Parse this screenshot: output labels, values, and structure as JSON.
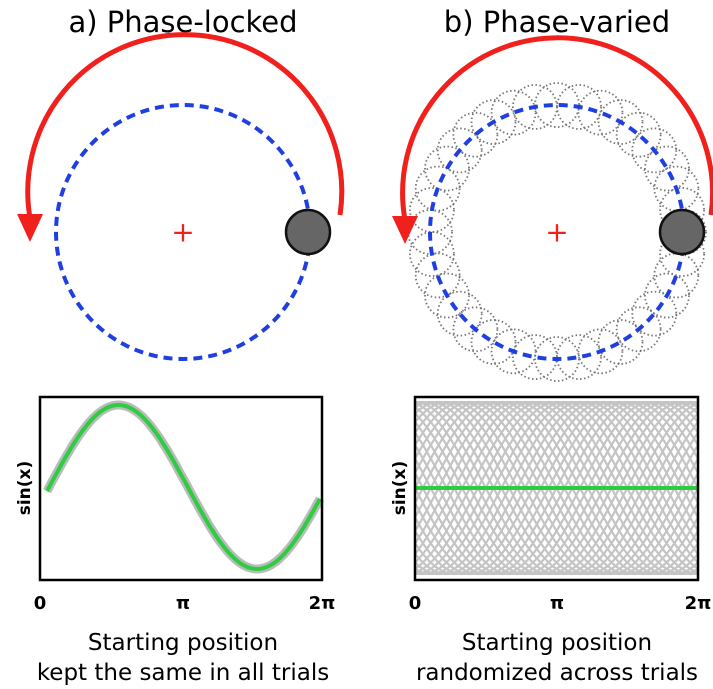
{
  "panels": [
    {
      "title": "a) Phase-locked",
      "y_label": "sin(x)",
      "x_ticks": [
        "0",
        "π",
        "2π"
      ],
      "caption": [
        "Starting position",
        "kept the same in all trials"
      ]
    },
    {
      "title": "b) Phase-varied",
      "y_label": "sin(x)",
      "x_ticks": [
        "0",
        "π",
        "2π"
      ],
      "caption": [
        "Starting position",
        "randomized across trials"
      ]
    }
  ]
}
